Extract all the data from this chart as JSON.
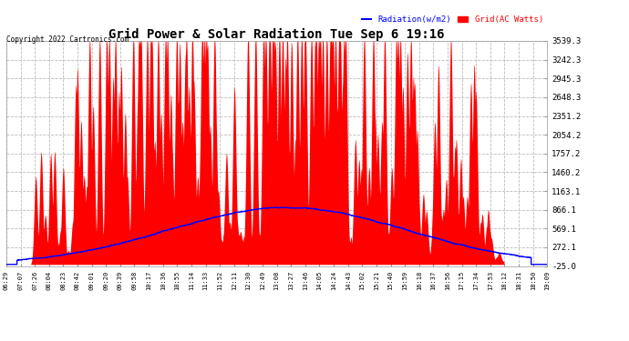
{
  "title": "Grid Power & Solar Radiation Tue Sep 6 19:16",
  "copyright": "Copyright 2022 Cartronics.com",
  "legend_radiation": "Radiation(w/m2)",
  "legend_grid": "Grid(AC Watts)",
  "ylabel_right_ticks": [
    3539.3,
    3242.3,
    2945.3,
    2648.3,
    2351.2,
    2054.2,
    1757.2,
    1460.2,
    1163.1,
    866.1,
    569.1,
    272.1,
    -25.0
  ],
  "ymin": -25.0,
  "ymax": 3539.3,
  "plot_bg_color": "#ffffff",
  "fig_bg_color": "#ffffff",
  "grid_color": "#bbbbbb",
  "radiation_color": "#0000ff",
  "grid_power_color": "#ff0000",
  "xtick_labels": [
    "06:29",
    "07:07",
    "07:26",
    "08:04",
    "08:23",
    "08:42",
    "09:01",
    "09:20",
    "09:39",
    "09:58",
    "10:17",
    "10:36",
    "10:55",
    "11:14",
    "11:33",
    "11:52",
    "12:11",
    "12:30",
    "12:49",
    "13:08",
    "13:27",
    "13:46",
    "14:05",
    "14:24",
    "14:43",
    "15:02",
    "15:21",
    "15:40",
    "15:59",
    "16:18",
    "16:37",
    "16:56",
    "17:15",
    "17:34",
    "17:53",
    "18:12",
    "18:31",
    "18:50",
    "19:09"
  ]
}
